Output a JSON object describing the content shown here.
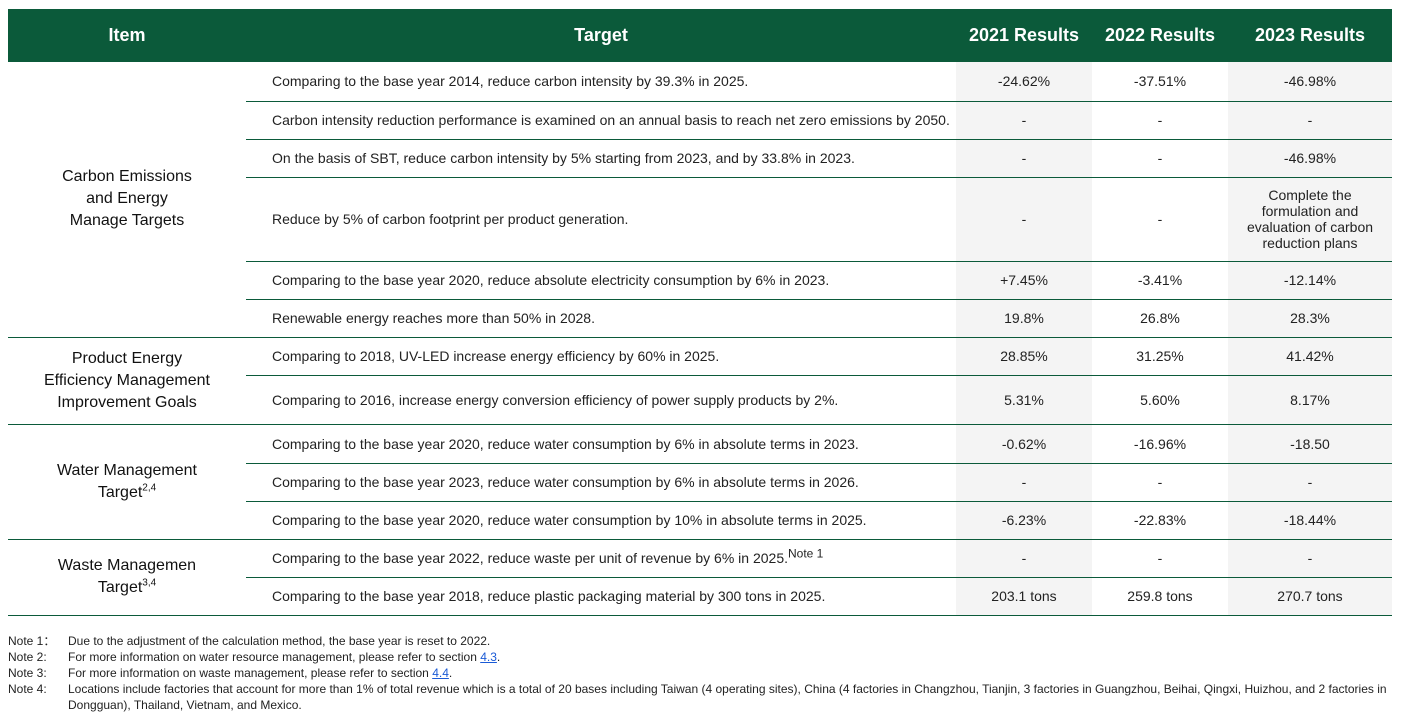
{
  "header": {
    "item": "Item",
    "target": "Target",
    "r2021": "2021 Results",
    "r2022": "2022 Results",
    "r2023": "2023 Results"
  },
  "groups": [
    {
      "name": "Carbon Emissions and Energy Manage Targets",
      "rows": [
        {
          "target": "Comparing to the base year 2014, reduce carbon intensity by 39.3% in 2025.",
          "r2021": "-24.62%",
          "r2022": "-37.51%",
          "r2023": "-46.98%"
        },
        {
          "target": "Carbon intensity reduction performance is examined on an annual basis to reach net zero emissions by 2050.",
          "r2021": "-",
          "r2022": "-",
          "r2023": "-"
        },
        {
          "target": "On the basis of SBT, reduce carbon intensity by 5% starting from 2023, and by 33.8% in 2023.",
          "r2021": "-",
          "r2022": "-",
          "r2023": "-46.98%"
        },
        {
          "target": "Reduce by 5% of carbon footprint per product generation.",
          "r2021": "-",
          "r2022": "-",
          "r2023": "Complete the formulation and evaluation of carbon reduction plans"
        },
        {
          "target": "Comparing to the base year 2020, reduce absolute electricity consumption by 6% in 2023.",
          "r2021": "+7.45%",
          "r2022": "-3.41%",
          "r2023": "-12.14%"
        },
        {
          "target": "Renewable energy reaches more than 50% in 2028.",
          "r2021": "19.8%",
          "r2022": "26.8%",
          "r2023": "28.3%"
        }
      ]
    },
    {
      "name": "Product Energy Efficiency Management Improvement Goals",
      "rows": [
        {
          "target": "Comparing to 2018, UV-LED increase energy efficiency by 60% in 2025.",
          "r2021": "28.85%",
          "r2022": "31.25%",
          "r2023": "41.42%"
        },
        {
          "target": "Comparing to 2016, increase energy conversion efficiency of power supply products by 2%.",
          "r2021": "5.31%",
          "r2022": "5.60%",
          "r2023": "8.17%"
        }
      ]
    },
    {
      "name": "Water Management Target",
      "sup": "2,4",
      "rows": [
        {
          "target": "Comparing to the base year 2020, reduce water consumption by 6% in absolute terms in 2023.",
          "r2021": "-0.62%",
          "r2022": "-16.96%",
          "r2023": "-18.50"
        },
        {
          "target": "Comparing to the base year 2023, reduce water consumption by 6% in absolute terms in 2026.",
          "r2021": "-",
          "r2022": "-",
          "r2023": "-"
        },
        {
          "target": "Comparing to the base year 2020, reduce water consumption by 10% in absolute terms in 2025.",
          "r2021": "-6.23%",
          "r2022": "-22.83%",
          "r2023": "-18.44%"
        }
      ]
    },
    {
      "name": "Waste Managemen Target",
      "sup": "3,4",
      "rows": [
        {
          "target": "Comparing to the base year 2022, reduce waste per unit of revenue by 6% in 2025.",
          "target_sup": "Note 1",
          "r2021": "-",
          "r2022": "-",
          "r2023": "-"
        },
        {
          "target": "Comparing to the base year 2018, reduce plastic packaging material by 300 tons in 2025.",
          "r2021": "203.1 tons",
          "r2022": "259.8 tons",
          "r2023": "270.7 tons"
        }
      ]
    }
  ],
  "item_lines": {
    "g0": [
      "Carbon Emissions",
      "and Energy",
      "Manage Targets"
    ],
    "g1": [
      "Product Energy",
      "Efficiency Management",
      "Improvement Goals"
    ],
    "g2": [
      "Water Management",
      "Target"
    ],
    "g3": [
      "Waste Managemen",
      "Target"
    ]
  },
  "notes": [
    {
      "label": "Note 1：",
      "text": "Due to the adjustment of the calculation method, the base year is reset to 2022."
    },
    {
      "label": "Note 2:",
      "text": "For more information on water resource management, please refer to section",
      "link": "4.3",
      "after": "."
    },
    {
      "label": "Note 3:",
      "text": "For more information on waste management, please refer to section",
      "link": "4.4",
      "after": "."
    },
    {
      "label": "Note 4:",
      "text": "Locations include factories that account for more than 1% of total revenue which is a total of 20 bases including Taiwan (4 operating sites), China (4 factories in Changzhou, Tianjin, 3 factories in Guangzhou, Beihai, Qingxi, Huizhou, and 2 factories in Dongguan), Thailand, Vietnam, and Mexico."
    }
  ],
  "colors": {
    "header_bg": "#0b5a3a",
    "header_text": "#ffffff",
    "rule": "#0b5a3a",
    "link": "#1a5ad6"
  }
}
